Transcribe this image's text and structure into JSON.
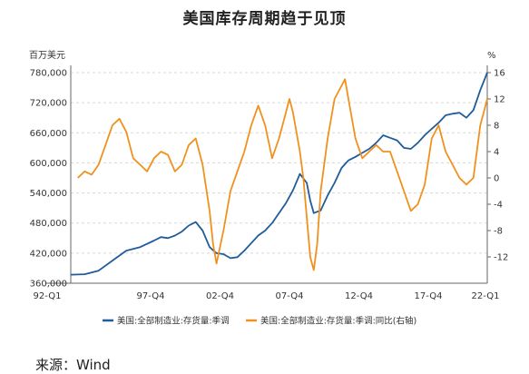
{
  "title": "美国库存周期趋于见顶",
  "source": "来源：Wind",
  "chart_data": {
    "type": "line",
    "left_unit": "百万美元",
    "right_unit": "%",
    "grid": "horizontal dashed",
    "legend_position": "bottom",
    "x_ticks": [
      "92-Q1",
      "97-Q4",
      "02-Q4",
      "07-Q4",
      "12-Q4",
      "17-Q4",
      "22-Q1"
    ],
    "x_tick_years": [
      1992.0,
      1997.75,
      2002.75,
      2007.75,
      2012.75,
      2017.75,
      2022.0
    ],
    "x_range": [
      1992.0,
      2022.0
    ],
    "left_axis": {
      "ticks": [
        360000,
        420000,
        480000,
        540000,
        600000,
        660000,
        720000,
        780000
      ],
      "tick_labels": [
        "360,000",
        "420,000",
        "480,000",
        "540,000",
        "600,000",
        "660,000",
        "720,000",
        "780,000"
      ],
      "range": [
        360000,
        780000
      ]
    },
    "right_axis": {
      "ticks": [
        -12,
        -8,
        -4,
        0,
        4,
        8,
        12,
        16
      ],
      "tick_labels": [
        "-12",
        "-8",
        "-4",
        "0",
        "4",
        "8",
        "12",
        "16"
      ],
      "range": [
        -16,
        16
      ]
    },
    "series": [
      {
        "name": "美国:全部制造业:存货量:季调",
        "axis": "left",
        "color": "#1f5c99",
        "points": [
          [
            1992.0,
            377000
          ],
          [
            1993.0,
            378000
          ],
          [
            1994.0,
            385000
          ],
          [
            1995.0,
            405000
          ],
          [
            1996.0,
            425000
          ],
          [
            1997.0,
            432000
          ],
          [
            1998.0,
            445000
          ],
          [
            1998.5,
            452000
          ],
          [
            1999.0,
            450000
          ],
          [
            1999.5,
            455000
          ],
          [
            2000.0,
            463000
          ],
          [
            2000.5,
            475000
          ],
          [
            2001.0,
            482000
          ],
          [
            2001.5,
            465000
          ],
          [
            2002.0,
            432000
          ],
          [
            2002.5,
            420000
          ],
          [
            2003.0,
            418000
          ],
          [
            2003.5,
            410000
          ],
          [
            2004.0,
            412000
          ],
          [
            2004.5,
            425000
          ],
          [
            2005.0,
            440000
          ],
          [
            2005.5,
            455000
          ],
          [
            2006.0,
            465000
          ],
          [
            2006.5,
            480000
          ],
          [
            2007.0,
            500000
          ],
          [
            2007.5,
            520000
          ],
          [
            2008.0,
            545000
          ],
          [
            2008.5,
            578000
          ],
          [
            2009.0,
            560000
          ],
          [
            2009.25,
            525000
          ],
          [
            2009.5,
            500000
          ],
          [
            2010.0,
            505000
          ],
          [
            2010.5,
            535000
          ],
          [
            2011.0,
            560000
          ],
          [
            2011.5,
            590000
          ],
          [
            2012.0,
            605000
          ],
          [
            2012.5,
            612000
          ],
          [
            2013.0,
            620000
          ],
          [
            2013.5,
            628000
          ],
          [
            2014.0,
            640000
          ],
          [
            2014.5,
            655000
          ],
          [
            2015.0,
            650000
          ],
          [
            2015.5,
            645000
          ],
          [
            2016.0,
            630000
          ],
          [
            2016.5,
            628000
          ],
          [
            2017.0,
            640000
          ],
          [
            2017.5,
            655000
          ],
          [
            2018.0,
            668000
          ],
          [
            2018.5,
            680000
          ],
          [
            2019.0,
            695000
          ],
          [
            2019.5,
            698000
          ],
          [
            2020.0,
            700000
          ],
          [
            2020.5,
            690000
          ],
          [
            2021.0,
            705000
          ],
          [
            2021.5,
            745000
          ],
          [
            2022.0,
            780000
          ]
        ]
      },
      {
        "name": "美国:全部制造业:存货量:季调:同比(右轴)",
        "axis": "right",
        "color": "#f0911e",
        "points": [
          [
            1992.5,
            0
          ],
          [
            1993.0,
            1
          ],
          [
            1993.5,
            0.5
          ],
          [
            1994.0,
            2
          ],
          [
            1994.5,
            5
          ],
          [
            1995.0,
            8
          ],
          [
            1995.5,
            9
          ],
          [
            1996.0,
            7
          ],
          [
            1996.5,
            3
          ],
          [
            1997.0,
            2
          ],
          [
            1997.5,
            1
          ],
          [
            1998.0,
            3
          ],
          [
            1998.5,
            4
          ],
          [
            1999.0,
            3.5
          ],
          [
            1999.5,
            1
          ],
          [
            2000.0,
            2
          ],
          [
            2000.5,
            5
          ],
          [
            2001.0,
            6
          ],
          [
            2001.5,
            2
          ],
          [
            2002.0,
            -5
          ],
          [
            2002.25,
            -10
          ],
          [
            2002.5,
            -13
          ],
          [
            2003.0,
            -8
          ],
          [
            2003.5,
            -2
          ],
          [
            2004.0,
            1
          ],
          [
            2004.5,
            4
          ],
          [
            2005.0,
            8
          ],
          [
            2005.5,
            11
          ],
          [
            2006.0,
            8
          ],
          [
            2006.5,
            3
          ],
          [
            2007.0,
            6
          ],
          [
            2007.5,
            10
          ],
          [
            2007.75,
            12
          ],
          [
            2008.0,
            10
          ],
          [
            2008.5,
            4
          ],
          [
            2008.75,
            0
          ],
          [
            2009.0,
            -6
          ],
          [
            2009.25,
            -12
          ],
          [
            2009.5,
            -14
          ],
          [
            2009.75,
            -10
          ],
          [
            2010.0,
            -2
          ],
          [
            2010.5,
            6
          ],
          [
            2011.0,
            12
          ],
          [
            2011.5,
            14
          ],
          [
            2011.75,
            15
          ],
          [
            2012.0,
            12
          ],
          [
            2012.5,
            6
          ],
          [
            2013.0,
            3
          ],
          [
            2013.5,
            4
          ],
          [
            2014.0,
            5
          ],
          [
            2014.5,
            4
          ],
          [
            2015.0,
            4
          ],
          [
            2015.5,
            1
          ],
          [
            2016.0,
            -2
          ],
          [
            2016.5,
            -5
          ],
          [
            2017.0,
            -4
          ],
          [
            2017.5,
            -1
          ],
          [
            2018.0,
            6
          ],
          [
            2018.5,
            8
          ],
          [
            2019.0,
            4
          ],
          [
            2019.5,
            2
          ],
          [
            2020.0,
            0
          ],
          [
            2020.5,
            -1
          ],
          [
            2021.0,
            0
          ],
          [
            2021.5,
            8
          ],
          [
            2022.0,
            12
          ]
        ]
      }
    ]
  }
}
